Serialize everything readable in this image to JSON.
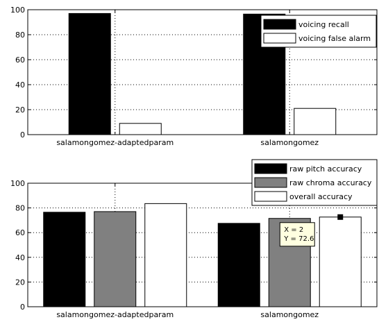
{
  "colors": {
    "black": "#000000",
    "gray": "#808080",
    "white": "#ffffff",
    "tooltip_bg": "#ffffe0",
    "grid": "#000000"
  },
  "chart_data": [
    {
      "type": "bar",
      "categories": [
        "salamongomez-adaptedparam",
        "salamongomez"
      ],
      "series": [
        {
          "name": "voicing recall",
          "color": "#000000",
          "values": [
            97,
            96.5
          ]
        },
        {
          "name": "voicing false alarm",
          "color": "#ffffff",
          "values": [
            9,
            21
          ]
        }
      ],
      "ylim": [
        0,
        100
      ],
      "yticks": [
        0,
        20,
        40,
        60,
        80,
        100
      ],
      "grid": true,
      "legend_position": "top-right"
    },
    {
      "type": "bar",
      "categories": [
        "salamongomez-adaptedparam",
        "salamongomez"
      ],
      "series": [
        {
          "name": "raw pitch accuracy",
          "color": "#000000",
          "values": [
            76.5,
            67.5
          ]
        },
        {
          "name": "raw chroma accuracy",
          "color": "#808080",
          "values": [
            77,
            71.5
          ]
        },
        {
          "name": "overall accuracy",
          "color": "#ffffff",
          "values": [
            83.5,
            72.6
          ]
        }
      ],
      "ylim": [
        0,
        100
      ],
      "yticks": [
        0,
        20,
        40,
        60,
        80,
        100
      ],
      "grid": true,
      "legend_position": "outside-top-right",
      "datatip": {
        "lines": [
          "X = 2",
          "Y = 72.6"
        ],
        "series_index": 2,
        "category_index": 1
      }
    }
  ]
}
